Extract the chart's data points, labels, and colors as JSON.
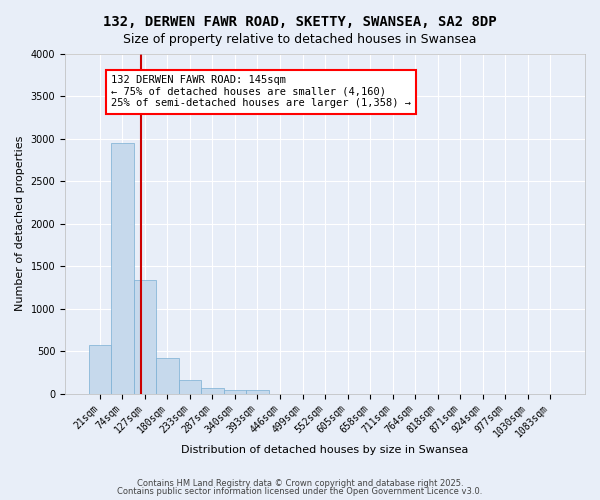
{
  "title": "132, DERWEN FAWR ROAD, SKETTY, SWANSEA, SA2 8DP",
  "subtitle": "Size of property relative to detached houses in Swansea",
  "xlabel": "Distribution of detached houses by size in Swansea",
  "ylabel": "Number of detached properties",
  "bar_color": "#c6d9ec",
  "bar_edge_color": "#7aafd4",
  "background_color": "#e8eef8",
  "grid_color": "#ffffff",
  "bin_labels": [
    "21sqm",
    "74sqm",
    "127sqm",
    "180sqm",
    "233sqm",
    "287sqm",
    "340sqm",
    "393sqm",
    "446sqm",
    "499sqm",
    "552sqm",
    "605sqm",
    "658sqm",
    "711sqm",
    "764sqm",
    "818sqm",
    "871sqm",
    "924sqm",
    "977sqm",
    "1030sqm",
    "1083sqm"
  ],
  "bar_heights": [
    575,
    2950,
    1340,
    420,
    155,
    70,
    45,
    45,
    0,
    0,
    0,
    0,
    0,
    0,
    0,
    0,
    0,
    0,
    0,
    0,
    0
  ],
  "ylim": [
    0,
    4000
  ],
  "vline_color": "#cc0000",
  "vline_x": 1.84,
  "annotation_text": "132 DERWEN FAWR ROAD: 145sqm\n← 75% of detached houses are smaller (4,160)\n25% of semi-detached houses are larger (1,358) →",
  "footer_line1": "Contains HM Land Registry data © Crown copyright and database right 2025.",
  "footer_line2": "Contains public sector information licensed under the Open Government Licence v3.0.",
  "title_fontsize": 10,
  "subtitle_fontsize": 9,
  "label_fontsize": 8,
  "tick_fontsize": 7,
  "annot_fontsize": 7.5,
  "footer_fontsize": 6,
  "yticks": [
    0,
    500,
    1000,
    1500,
    2000,
    2500,
    3000,
    3500,
    4000
  ]
}
